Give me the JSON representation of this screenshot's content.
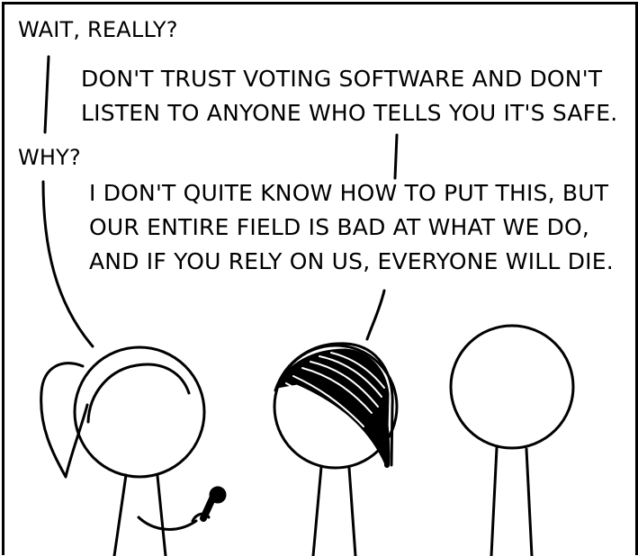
{
  "comic": {
    "speech": {
      "wait_really": "WAIT, REALLY?",
      "dont_trust_line_1": "DON'T TRUST VOTING SOFTWARE AND DON'T",
      "dont_trust_line_2": "LISTEN TO ANYONE WHO TELLS YOU IT'S SAFE.",
      "why": "WHY?",
      "explain_line_1": "I DON'T QUITE KNOW HOW TO PUT THIS, BUT",
      "explain_line_2": "OUR ENTIRE FIELD IS BAD AT WHAT WE DO,",
      "explain_line_3": "AND IF YOU RELY ON US, EVERYONE WILL DIE."
    }
  }
}
